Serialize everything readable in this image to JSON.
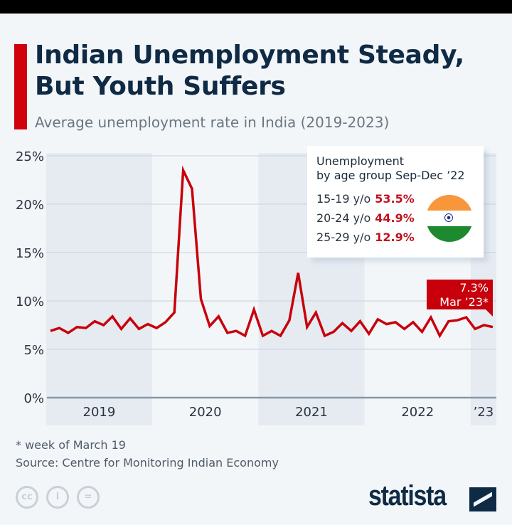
{
  "header": {
    "title": "Indian Unemployment Steady, But Youth Suffers",
    "subtitle": "Average unemployment rate in India (2019-2023)"
  },
  "legend_box": {
    "title_line1": "Unemployment",
    "title_line2": "by age group Sep-Dec ’22",
    "rows": [
      {
        "label": "15-19 y/o",
        "value": "53.5%"
      },
      {
        "label": "20-24 y/o",
        "value": "44.9%"
      },
      {
        "label": "25-29 y/o",
        "value": "12.9%"
      }
    ],
    "flag_icon": "india-flag-icon"
  },
  "annotation": {
    "value": "7.3%",
    "label": "Mar ’23*"
  },
  "footer": {
    "note": "* week of March 19",
    "source": "Source: Centre for Monitoring Indian Economy",
    "brand": "statista"
  },
  "colors": {
    "line": "#c8000b",
    "title": "#0f2a44",
    "band": "#e6ebf2"
  },
  "chart_data": {
    "type": "line",
    "x_start": "2019-01",
    "x_end": "2023-03",
    "frequency": "monthly",
    "values": [
      6.9,
      7.2,
      6.7,
      7.3,
      7.2,
      7.9,
      7.5,
      8.4,
      7.1,
      8.2,
      7.1,
      7.6,
      7.2,
      7.8,
      8.8,
      23.5,
      21.6,
      10.2,
      7.4,
      8.4,
      6.7,
      6.9,
      6.4,
      9.1,
      6.4,
      6.9,
      6.4,
      8.0,
      12.9,
      7.3,
      8.8,
      6.4,
      6.8,
      7.7,
      6.9,
      7.9,
      6.6,
      8.1,
      7.6,
      7.8,
      7.1,
      7.8,
      6.8,
      8.3,
      6.4,
      7.9,
      8.0,
      8.3,
      7.1,
      7.5,
      7.3
    ],
    "ylim": [
      0,
      25
    ],
    "yticks": [
      "0%",
      "5%",
      "10%",
      "15%",
      "20%",
      "25%"
    ],
    "xticks": [
      "2019",
      "2020",
      "2021",
      "2022",
      "’23"
    ],
    "grid": true,
    "xlabel": "",
    "ylabel": ""
  }
}
